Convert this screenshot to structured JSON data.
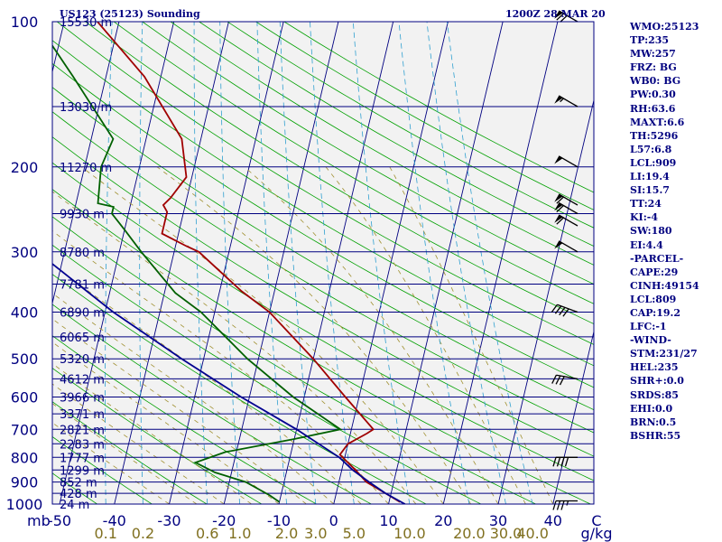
{
  "chart_data": {
    "type": "line",
    "title": "US123 (25123) Sounding",
    "valid_time": "1200Z 28 MAR 20",
    "xlabel": "",
    "ylabel": "",
    "y_axis": "pressure_mb",
    "y_scale": "log",
    "ylim": [
      1000,
      100
    ],
    "xlim": [
      -50,
      40
    ],
    "pressure_ticks": [
      "100",
      "200",
      "300",
      "400",
      "500",
      "600",
      "700",
      "800",
      "900",
      "1000"
    ],
    "pressure_levels": [
      100,
      200,
      300,
      400,
      500,
      600,
      700,
      800,
      900,
      1000
    ],
    "temperature_ticks": [
      "-50",
      "-40",
      "-30",
      "-20",
      "-10",
      "0",
      "10",
      "20",
      "30",
      "40"
    ],
    "temperature_values": [
      -50,
      -40,
      -30,
      -20,
      -10,
      0,
      10,
      20,
      30,
      40
    ],
    "unit_mb": "mb",
    "unit_c": "C",
    "unit_gkg": "g/kg",
    "mixing_ratio_labels": [
      "0.1",
      "0.2",
      "0.6",
      "1.0",
      "2.0",
      "3.0",
      "5.0",
      "10.0",
      "20.0",
      "30.0",
      "40.0"
    ],
    "mixing_ratio_values": [
      0.1,
      0.2,
      0.6,
      1.0,
      2.0,
      3.0,
      5.0,
      10.0,
      20.0,
      30.0,
      40.0
    ],
    "height_labels": [
      {
        "text": "15530 m",
        "p": 100
      },
      {
        "text": "13030 m",
        "p": 150
      },
      {
        "text": "11270 m",
        "p": 200
      },
      {
        "text": "9930 m",
        "p": 250
      },
      {
        "text": "8780 m",
        "p": 300
      },
      {
        "text": "7781 m",
        "p": 350
      },
      {
        "text": "6890 m",
        "p": 400
      },
      {
        "text": "6065 m",
        "p": 450
      },
      {
        "text": "5320 m",
        "p": 500
      },
      {
        "text": "4612 m",
        "p": 550
      },
      {
        "text": "3966 m",
        "p": 600
      },
      {
        "text": "3371 m",
        "p": 650
      },
      {
        "text": "2821 m",
        "p": 700
      },
      {
        "text": "2283 m",
        "p": 750
      },
      {
        "text": "1777 m",
        "p": 800
      },
      {
        "text": "1299 m",
        "p": 850
      },
      {
        "text": "852 m",
        "p": 900
      },
      {
        "text": "428 m",
        "p": 950
      },
      {
        "text": "24 m",
        "p": 1000
      }
    ],
    "series": [
      {
        "role": "temperature",
        "color": "#a00000",
        "points": [
          [
            97.5,
            -65.0
          ],
          [
            130.0,
            -53.0
          ],
          [
            175.0,
            -43.5
          ],
          [
            210.0,
            -41.0
          ],
          [
            232.0,
            -43.0
          ],
          [
            240.0,
            -44.0
          ],
          [
            248.0,
            -43.0
          ],
          [
            275.0,
            -43.0
          ],
          [
            292.0,
            -38.0
          ],
          [
            300.0,
            -35.5
          ],
          [
            362.0,
            -26.0
          ],
          [
            400.0,
            -20.0
          ],
          [
            500.0,
            -10.0
          ],
          [
            600.0,
            -2.5
          ],
          [
            700.0,
            4.0
          ],
          [
            714.0,
            3.0
          ],
          [
            750.0,
            0.0
          ],
          [
            790.0,
            -1.0
          ],
          [
            850.0,
            2.5
          ],
          [
            900.0,
            5.0
          ],
          [
            950.0,
            9.0
          ],
          [
            990.0,
            12.0
          ]
        ]
      },
      {
        "role": "dewpoint",
        "color": "#006000",
        "points": [
          [
            97.5,
            -76.0
          ],
          [
            130.0,
            -66.0
          ],
          [
            175.0,
            -56.0
          ],
          [
            200.0,
            -57.0
          ],
          [
            238.0,
            -56.0
          ],
          [
            242.0,
            -53.0
          ],
          [
            250.0,
            -53.0
          ],
          [
            270.0,
            -50.0
          ],
          [
            300.0,
            -46.0
          ],
          [
            365.0,
            -38.0
          ],
          [
            400.0,
            -32.5
          ],
          [
            500.0,
            -22.0
          ],
          [
            600.0,
            -12.0
          ],
          [
            700.0,
            -2.0
          ],
          [
            733.0,
            -10.0
          ],
          [
            780.0,
            -22.0
          ],
          [
            820.0,
            -27.0
          ],
          [
            860.0,
            -23.0
          ],
          [
            900.0,
            -17.0
          ],
          [
            960.0,
            -12.0
          ],
          [
            990.0,
            -10.0
          ]
        ]
      },
      {
        "role": "parcel",
        "color": "#000090",
        "points": [
          [
            110.0,
            -113.0
          ],
          [
            150.0,
            -99.0
          ],
          [
            200.0,
            -86.0
          ],
          [
            250.0,
            -75.0
          ],
          [
            300.0,
            -65.0
          ],
          [
            400.0,
            -48.5
          ],
          [
            500.0,
            -34.0
          ],
          [
            600.0,
            -21.5
          ],
          [
            700.0,
            -10.0
          ],
          [
            800.0,
            -1.0
          ],
          [
            850.0,
            2.0
          ],
          [
            900.0,
            5.5
          ],
          [
            950.0,
            9.0
          ],
          [
            1000.0,
            13.0
          ]
        ]
      }
    ],
    "wind_barbs": [
      {
        "p": 100,
        "speed_kt": 70,
        "dir": 300
      },
      {
        "p": 150,
        "speed_kt": 55,
        "dir": 300
      },
      {
        "p": 200,
        "speed_kt": 50,
        "dir": 300
      },
      {
        "p": 240,
        "speed_kt": 60,
        "dir": 300
      },
      {
        "p": 250,
        "speed_kt": 60,
        "dir": 300
      },
      {
        "p": 265,
        "speed_kt": 60,
        "dir": 300
      },
      {
        "p": 300,
        "speed_kt": 50,
        "dir": 300
      },
      {
        "p": 400,
        "speed_kt": 40,
        "dir": 290
      },
      {
        "p": 550,
        "speed_kt": 30,
        "dir": 280
      },
      {
        "p": 800,
        "speed_kt": 40,
        "dir": 270
      },
      {
        "p": 985,
        "speed_kt": 35,
        "dir": 270
      }
    ]
  },
  "indices": [
    "WMO:25123",
    "TP:235",
    "MW:257",
    "FRZ: BG",
    "WB0: BG",
    "PW:0.30",
    "RH:63.6",
    "MAXT:6.6",
    "TH:5296",
    "L57:6.8",
    "LCL:909",
    "LI:19.4",
    "SI:15.7",
    "TT:24",
    "KI:-4",
    "SW:180",
    "EI:4.4",
    "-PARCEL-",
    "CAPE:29",
    "CINH:49154",
    "LCL:809",
    "CAP:19.2",
    "LFC:-1",
    "-WIND-",
    "STM:231/27",
    "HEL:235",
    "SHR+:0.0",
    "SRDS:85",
    "EHI:0.0",
    "BRN:0.5",
    "BSHR:55"
  ],
  "colors": {
    "isobar": "#000080",
    "isotherm": "#000080",
    "dry_adiabat": "#00a000",
    "moist_adiabat": "#a09030",
    "mixing_ratio": "#30a0d0",
    "background": "#f2f2f2"
  }
}
